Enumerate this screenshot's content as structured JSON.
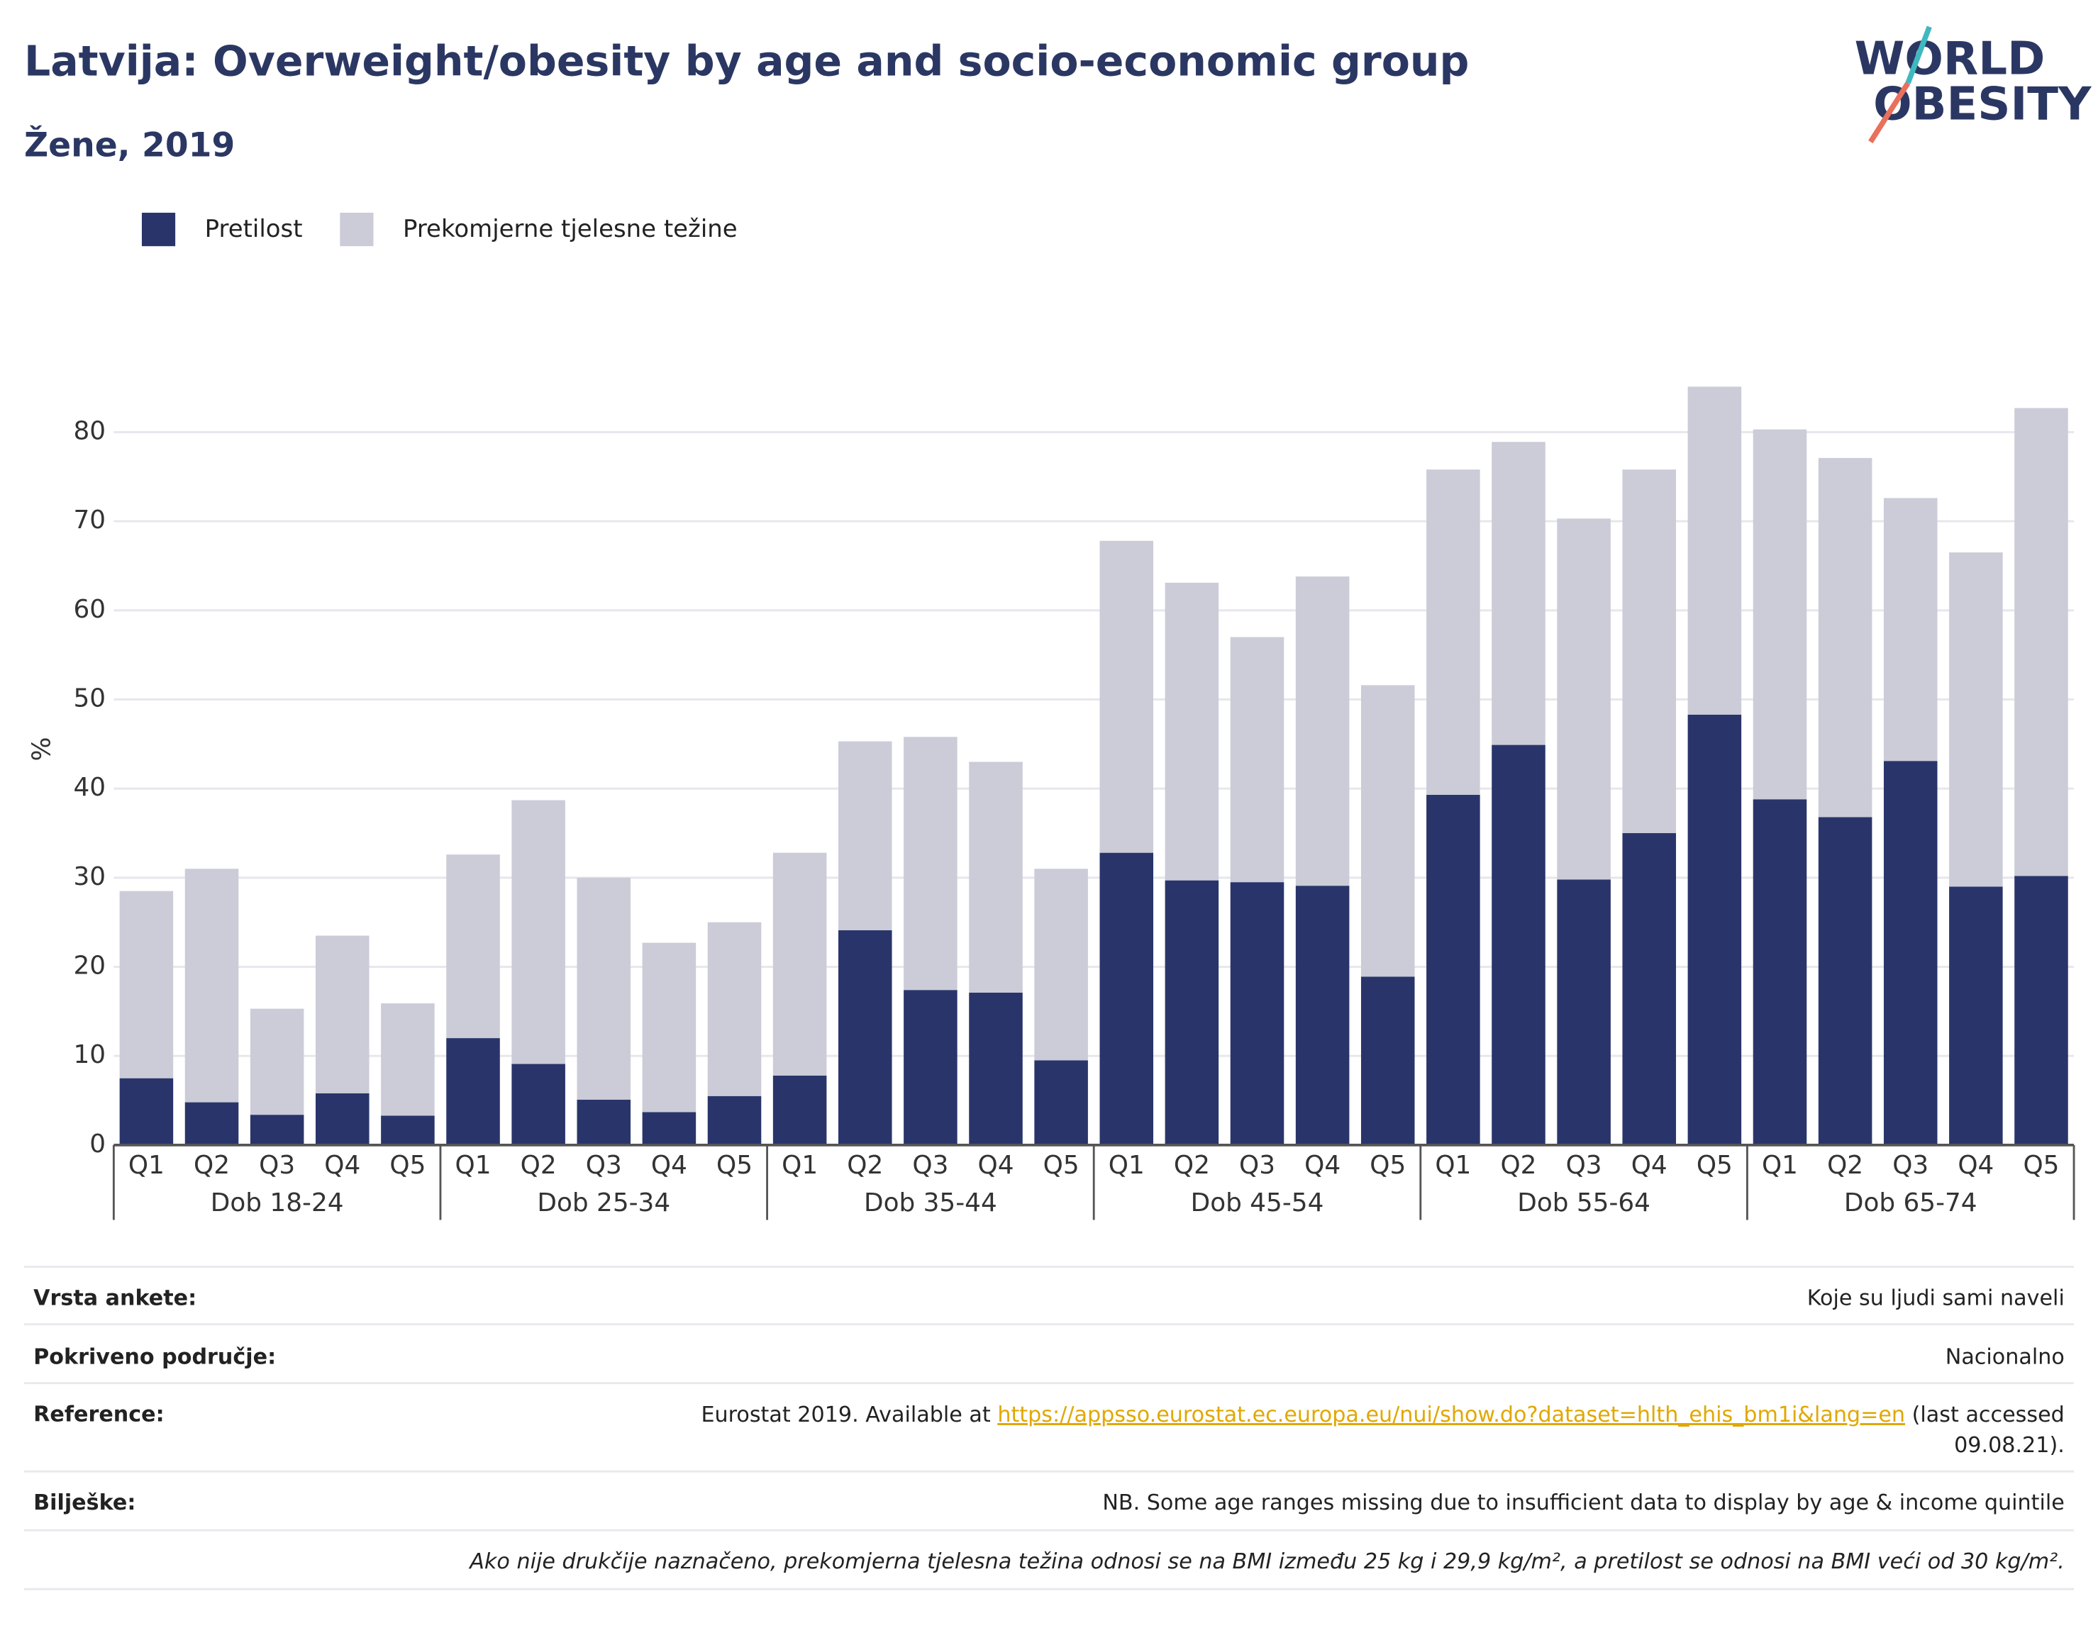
{
  "chart_data": {
    "type": "stacked-bar",
    "title": "Latvija: Overweight/obesity by age and socio-economic group",
    "subtitle": "Žene, 2019",
    "y_label": "%",
    "groups": [
      {
        "name": "Dob 18-24",
        "categories": [
          "Q1",
          "Q2",
          "Q3",
          "Q4",
          "Q5"
        ]
      },
      {
        "name": "Dob 25-34",
        "categories": [
          "Q1",
          "Q2",
          "Q3",
          "Q4",
          "Q5"
        ]
      },
      {
        "name": "Dob 35-44",
        "categories": [
          "Q1",
          "Q2",
          "Q3",
          "Q4",
          "Q5"
        ]
      },
      {
        "name": "Dob 45-54",
        "categories": [
          "Q1",
          "Q2",
          "Q3",
          "Q4",
          "Q5"
        ]
      },
      {
        "name": "Dob 55-64",
        "categories": [
          "Q1",
          "Q2",
          "Q3",
          "Q4",
          "Q5"
        ]
      },
      {
        "name": "Dob 65-74",
        "categories": [
          "Q1",
          "Q2",
          "Q3",
          "Q4",
          "Q5"
        ]
      }
    ],
    "series": [
      {
        "name": "Pretilost",
        "color": "#29356a",
        "values": [
          7.5,
          4.8,
          3.4,
          5.8,
          3.3,
          12,
          9.1,
          5.1,
          3.7,
          5.5,
          7.8,
          24.1,
          17.4,
          17.1,
          9.5,
          32.8,
          29.7,
          29.5,
          29.1,
          18.9,
          39.3,
          44.9,
          29.8,
          35.0,
          48.3,
          38.8,
          36.8,
          43.1,
          29,
          30.2
        ]
      },
      {
        "name": "Prekomjerne tjelesne težine",
        "color": "#cbccd8",
        "values": [
          21.0,
          26.2,
          11.9,
          17.7,
          12.6,
          20.6,
          29.6,
          24.9,
          19.0,
          19.5,
          25.0,
          21.2,
          28.4,
          25.9,
          21.5,
          35.0,
          33.4,
          27.5,
          34.7,
          32.7,
          36.5,
          34.0,
          40.5,
          40.8,
          36.8,
          41.5,
          40.3,
          29.5,
          37.5,
          52.5
        ]
      }
    ],
    "ylim": [
      0,
      88
    ],
    "yticks": [
      0,
      10,
      20,
      30,
      40,
      50,
      60,
      70,
      80
    ],
    "grid": true,
    "legend": "top-left"
  },
  "logo": [
    "WORLD",
    "OBESITY"
  ],
  "table": {
    "rows": [
      {
        "label": "Vrsta ankete:",
        "value": "Koje su ljudi sami naveli"
      },
      {
        "label": "Pokriveno područje:",
        "value": "Nacionalno"
      },
      {
        "label": "Reference:",
        "value": {
          "text": "Eurostat 2019. Available at",
          "link": "https://appsso.eurostat.ec.europa.eu/nui/show.do?dataset=hlth_ehis_bm1i&lang=en",
          "after": [
            "(last accessed",
            "09.08.21)."
          ]
        }
      },
      {
        "label": "Bilješke:",
        "value": "NB. Some age ranges missing due to insufficient data to display by age & income quintile"
      }
    ],
    "footnote": "Ako nije drukčije naznačeno, prekomjerna tjelesna težina odnosi se na BMI između 25 kg i 29,9 kg/m², a pretilost se odnosi na BMI veći od 30 kg/m²."
  }
}
